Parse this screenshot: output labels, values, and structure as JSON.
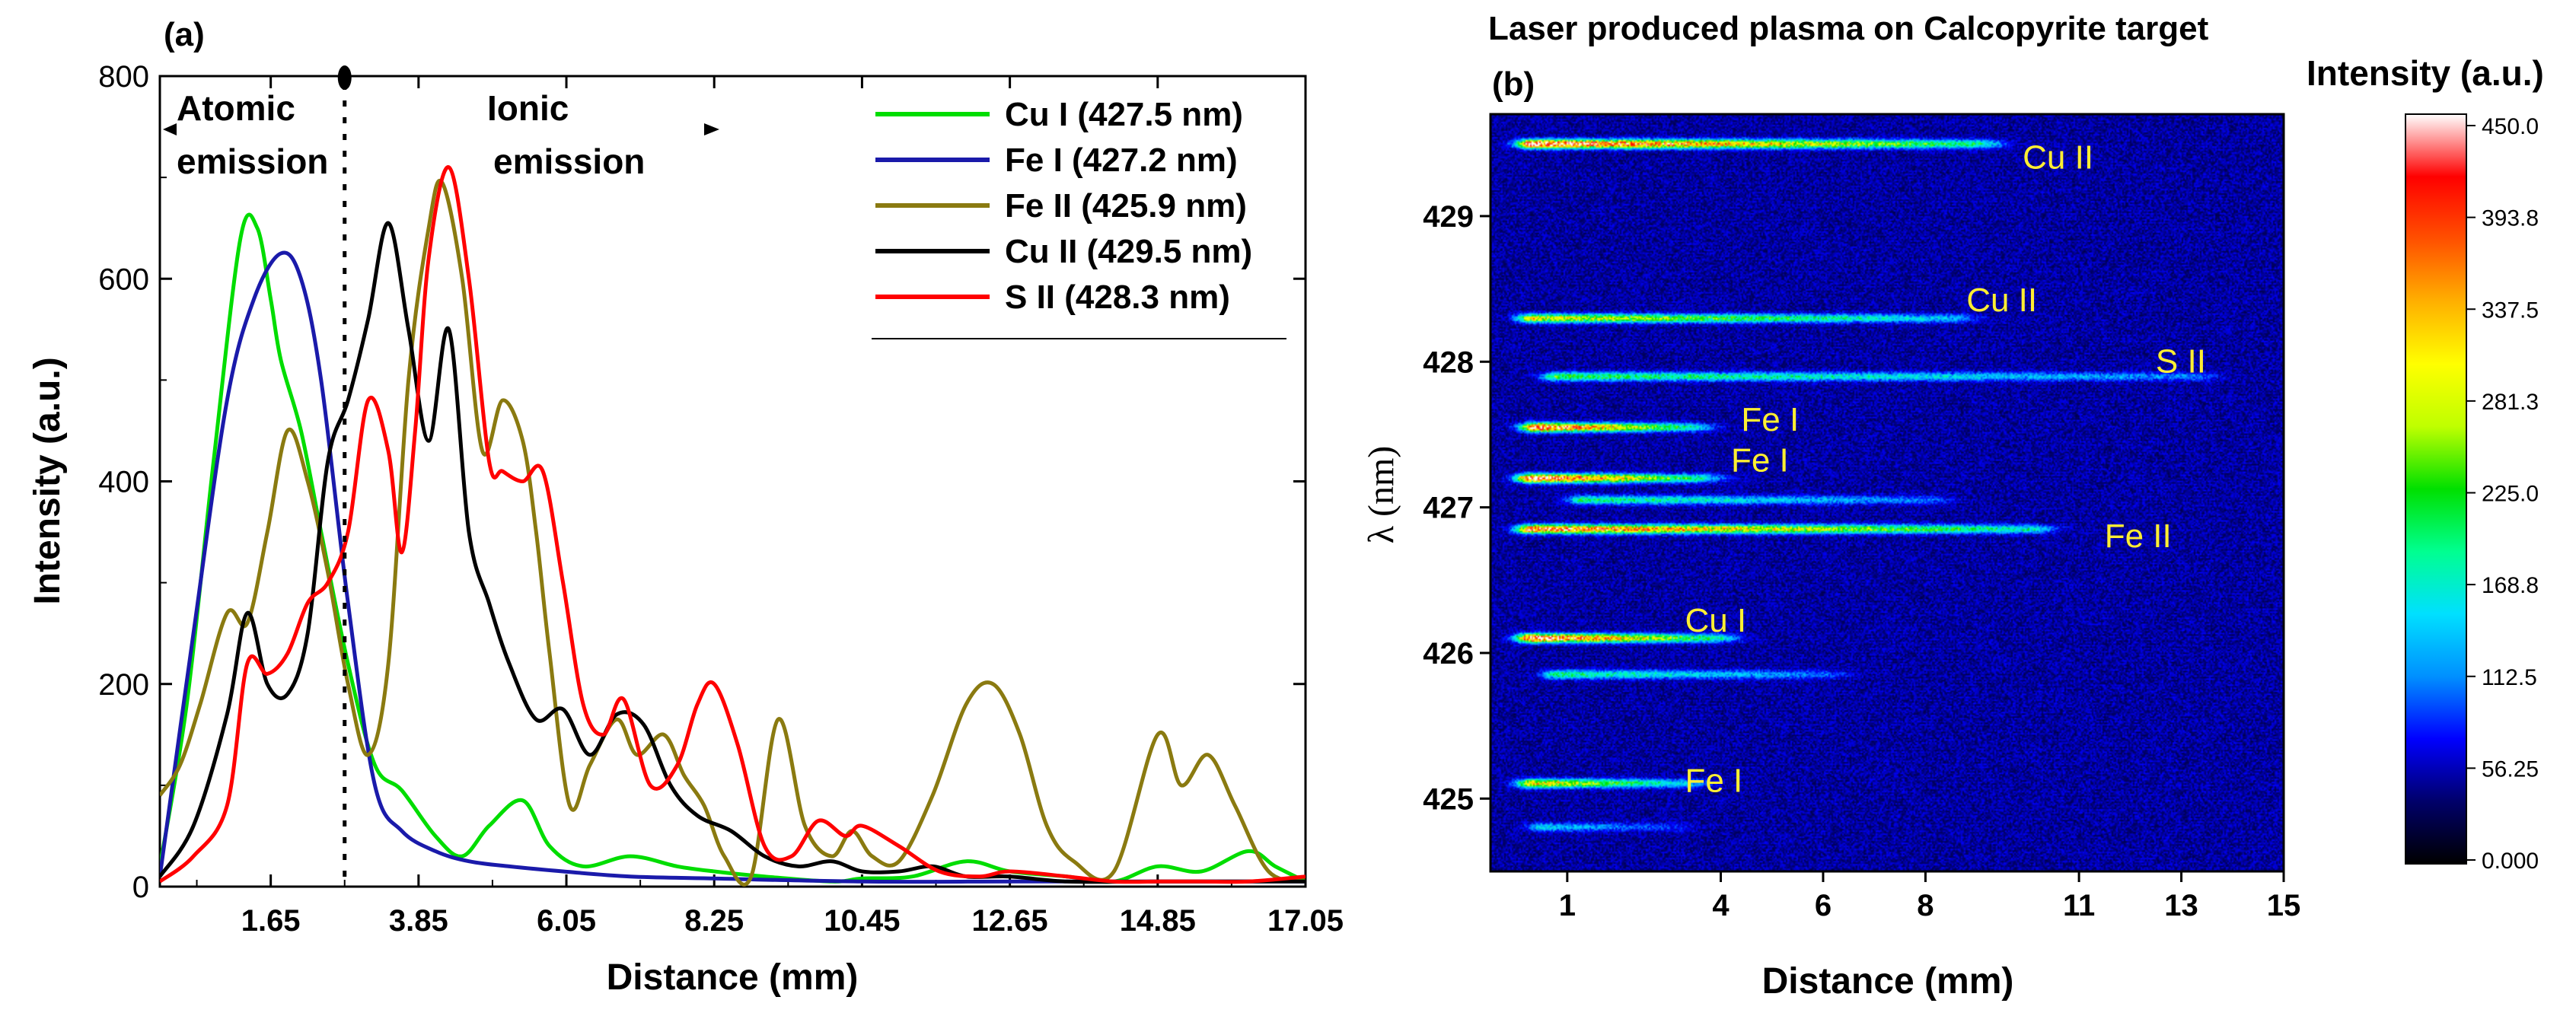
{
  "panel_a": {
    "label": "(a)",
    "annotation_atomic_line1": "Atomic",
    "annotation_atomic_line2": "emission",
    "annotation_ionic_line1": "Ionic",
    "annotation_ionic_line2": "emission",
    "divider_label_x": 2.75
  },
  "panel_b": {
    "label": "(b)",
    "title": "Laser produced plasma on Calcopyrite target",
    "colorbar_title": "Intensity (a.u.)",
    "colorbar_ticks": [
      "450.0",
      "393.8",
      "337.5",
      "281.3",
      "225.0",
      "168.8",
      "112.5",
      "56.25",
      "0.000"
    ],
    "colormap": [
      "#000000",
      "#00006a",
      "#0000ff",
      "#0090ff",
      "#00e0ff",
      "#00ff90",
      "#00e000",
      "#bfff00",
      "#ffff00",
      "#ffb000",
      "#ff5000",
      "#ff0000",
      "#ffffff"
    ],
    "line_labels": [
      {
        "text": "Cu II",
        "x": 9.9,
        "y": 429.4
      },
      {
        "text": "Cu II",
        "x": 8.8,
        "y": 428.42
      },
      {
        "text": "S II",
        "x": 12.5,
        "y": 428.0
      },
      {
        "text": "Fe I",
        "x": 4.4,
        "y": 427.6
      },
      {
        "text": "Fe I",
        "x": 4.2,
        "y": 427.32
      },
      {
        "text": "Fe II",
        "x": 11.5,
        "y": 426.8
      },
      {
        "text": "Cu I",
        "x": 3.3,
        "y": 426.22
      },
      {
        "text": "Fe I",
        "x": 3.3,
        "y": 425.12
      }
    ]
  },
  "chart_data": [
    {
      "type": "line",
      "panel": "a",
      "title": "",
      "xlabel": "Distance (mm)",
      "ylabel": "Intensity (a.u.)",
      "xlim": [
        0,
        17.05
      ],
      "ylim": [
        0,
        800
      ],
      "xticks": [
        1.65,
        3.85,
        6.05,
        8.25,
        10.45,
        12.65,
        14.85,
        17.05
      ],
      "xtick_labels": [
        "1.65",
        "3.85",
        "6.05",
        "8.25",
        "10.45",
        "12.65",
        "14.85",
        "17.05"
      ],
      "yticks": [
        0,
        200,
        400,
        600,
        800
      ],
      "ytick_labels": [
        "0",
        "200",
        "400",
        "600",
        "800"
      ],
      "legend_position": "top-right",
      "series": [
        {
          "name": "Cu I (427.5 nm)",
          "color": "#00dd00",
          "x": [
            0,
            0.4,
            0.8,
            1.2,
            1.45,
            1.65,
            1.8,
            2.1,
            2.4,
            2.8,
            3.2,
            3.6,
            4.1,
            4.5,
            4.9,
            5.4,
            5.8,
            6.3,
            7.0,
            7.7,
            8.25,
            9.0,
            10.0,
            10.45,
            11.2,
            12.0,
            12.65,
            13.5,
            14.2,
            14.85,
            15.5,
            16.2,
            16.6,
            17.05
          ],
          "y": [
            20,
            180,
            420,
            640,
            650,
            580,
            520,
            450,
            350,
            220,
            120,
            95,
            50,
            30,
            60,
            85,
            40,
            20,
            30,
            20,
            15,
            10,
            5,
            8,
            10,
            25,
            15,
            10,
            5,
            20,
            15,
            35,
            20,
            5
          ]
        },
        {
          "name": "Fe I (427.2 nm)",
          "color": "#1a1aaa",
          "x": [
            0,
            0.5,
            1.0,
            1.4,
            1.8,
            2.1,
            2.4,
            2.8,
            3.2,
            3.6,
            4.1,
            4.6,
            5.2,
            6.0,
            7.0,
            8.25,
            10.45,
            12.65,
            14.85,
            17.05
          ],
          "y": [
            10,
            250,
            480,
            580,
            625,
            600,
            500,
            280,
            100,
            55,
            35,
            25,
            20,
            15,
            10,
            8,
            5,
            5,
            5,
            5
          ]
        },
        {
          "name": "Fe II (425.9 nm)",
          "color": "#8a7a10",
          "x": [
            0,
            0.3,
            0.6,
            1.0,
            1.3,
            1.6,
            1.9,
            2.2,
            2.5,
            2.8,
            3.1,
            3.4,
            3.7,
            4.0,
            4.2,
            4.5,
            4.8,
            5.1,
            5.4,
            5.6,
            5.8,
            6.1,
            6.4,
            6.8,
            7.1,
            7.5,
            7.8,
            8.1,
            8.4,
            8.8,
            9.2,
            9.6,
            10.0,
            10.3,
            10.6,
            11.0,
            11.5,
            12.0,
            12.4,
            12.8,
            13.2,
            13.6,
            14.2,
            14.85,
            15.2,
            15.6,
            16.0,
            16.5,
            17.05
          ],
          "y": [
            90,
            120,
            180,
            270,
            260,
            350,
            450,
            400,
            310,
            200,
            130,
            220,
            500,
            650,
            695,
            600,
            430,
            480,
            440,
            350,
            230,
            80,
            120,
            165,
            130,
            150,
            110,
            80,
            30,
            10,
            165,
            60,
            30,
            55,
            30,
            25,
            90,
            180,
            200,
            150,
            60,
            25,
            15,
            150,
            100,
            130,
            80,
            15,
            5
          ]
        },
        {
          "name": "Cu II (429.5 nm)",
          "color": "#000000",
          "x": [
            0,
            0.5,
            1.0,
            1.3,
            1.6,
            1.9,
            2.2,
            2.5,
            2.8,
            3.1,
            3.4,
            3.7,
            4.0,
            4.3,
            4.6,
            4.9,
            5.2,
            5.6,
            6.0,
            6.4,
            6.8,
            7.2,
            7.6,
            8.0,
            8.5,
            9.0,
            9.5,
            10.0,
            10.45,
            11.0,
            11.5,
            12.0,
            12.65,
            13.5,
            14.85,
            16.0,
            17.05
          ],
          "y": [
            10,
            60,
            170,
            270,
            200,
            190,
            250,
            420,
            480,
            560,
            655,
            550,
            440,
            550,
            350,
            280,
            220,
            165,
            175,
            130,
            170,
            160,
            100,
            70,
            55,
            30,
            20,
            25,
            15,
            15,
            20,
            10,
            10,
            5,
            5,
            5,
            5
          ]
        },
        {
          "name": "S II (428.3 nm)",
          "color": "#ff0000",
          "x": [
            0,
            0.5,
            1.0,
            1.3,
            1.6,
            1.9,
            2.2,
            2.5,
            2.8,
            3.1,
            3.4,
            3.6,
            3.8,
            4.0,
            4.3,
            4.6,
            4.9,
            5.1,
            5.4,
            5.7,
            6.0,
            6.3,
            6.6,
            6.9,
            7.3,
            7.7,
            8.0,
            8.25,
            8.6,
            9.0,
            9.4,
            9.8,
            10.2,
            10.45,
            11.0,
            11.6,
            12.2,
            12.65,
            13.5,
            14.2,
            14.85,
            15.5,
            16.2,
            17.05
          ],
          "y": [
            5,
            30,
            80,
            220,
            210,
            230,
            280,
            300,
            350,
            480,
            430,
            330,
            450,
            620,
            710,
            600,
            420,
            410,
            400,
            410,
            300,
            180,
            150,
            185,
            100,
            120,
            180,
            200,
            140,
            40,
            30,
            65,
            50,
            60,
            40,
            15,
            10,
            15,
            10,
            5,
            5,
            5,
            5,
            10
          ]
        }
      ]
    },
    {
      "type": "heatmap",
      "panel": "b",
      "title": "Laser produced plasma on Calcopyrite target",
      "xlabel": "Distance (mm)",
      "ylabel": "λ (nm)",
      "xlim": [
        -0.5,
        15
      ],
      "ylim": [
        424.5,
        429.7
      ],
      "xticks": [
        1,
        4,
        6,
        8,
        11,
        13,
        15
      ],
      "xtick_labels": [
        "1",
        "4",
        "6",
        "8",
        "11",
        "13",
        "15"
      ],
      "yticks": [
        425,
        426,
        427,
        428,
        429
      ],
      "ytick_labels": [
        "425",
        "426",
        "427",
        "428",
        "429"
      ],
      "zlim": [
        0,
        450
      ],
      "emission_lines": [
        {
          "wavelength": 429.5,
          "peak": 450,
          "x_start": 0.3,
          "x_end": 9.0
        },
        {
          "wavelength": 428.3,
          "peak": 280,
          "x_start": 0.3,
          "x_end": 8.5
        },
        {
          "wavelength": 427.9,
          "peak": 190,
          "x_start": 0.8,
          "x_end": 13.2
        },
        {
          "wavelength": 427.55,
          "peak": 440,
          "x_start": 0.4,
          "x_end": 3.3
        },
        {
          "wavelength": 427.2,
          "peak": 450,
          "x_start": 0.3,
          "x_end": 3.5
        },
        {
          "wavelength": 427.05,
          "peak": 170,
          "x_start": 1.3,
          "x_end": 8.0
        },
        {
          "wavelength": 426.85,
          "peak": 400,
          "x_start": 0.3,
          "x_end": 10.0
        },
        {
          "wavelength": 426.1,
          "peak": 450,
          "x_start": 0.3,
          "x_end": 3.8
        },
        {
          "wavelength": 425.85,
          "peak": 170,
          "x_start": 0.8,
          "x_end": 6.0
        },
        {
          "wavelength": 425.1,
          "peak": 300,
          "x_start": 0.3,
          "x_end": 3.3
        },
        {
          "wavelength": 424.8,
          "peak": 110,
          "x_start": 0.5,
          "x_end": 3.0
        }
      ]
    }
  ]
}
